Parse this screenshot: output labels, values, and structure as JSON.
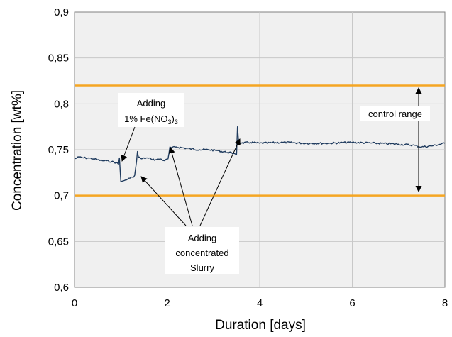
{
  "chart_data": {
    "type": "line",
    "title": "",
    "xlabel": "Duration [days]",
    "ylabel": "Concentration [wt%]",
    "xlim": [
      0,
      8
    ],
    "ylim": [
      0.6,
      0.9
    ],
    "x_ticks": [
      0,
      2,
      4,
      6,
      8
    ],
    "x_tick_labels": [
      "0",
      "2",
      "4",
      "6",
      "8"
    ],
    "y_ticks": [
      0.6,
      0.65,
      0.7,
      0.75,
      0.8,
      0.85,
      0.9
    ],
    "y_tick_labels": [
      "0,6",
      "0,65",
      "0,7",
      "0,75",
      "0,8",
      "0,85",
      "0,9"
    ],
    "grid": true,
    "background": "#f0f0f0",
    "series": [
      {
        "color": "#1f3b5e",
        "x": [
          0,
          0.1,
          0.2,
          0.3,
          0.4,
          0.5,
          0.6,
          0.7,
          0.8,
          0.9,
          0.95,
          0.97,
          1.0,
          1.05,
          1.1,
          1.15,
          1.2,
          1.25,
          1.3,
          1.34,
          1.36,
          1.38,
          1.45,
          1.55,
          1.65,
          1.75,
          1.85,
          1.95,
          2.02,
          2.04,
          2.06,
          2.1,
          2.2,
          2.35,
          2.5,
          2.7,
          2.9,
          3.1,
          3.3,
          3.45,
          3.5,
          3.52,
          3.54,
          3.56,
          3.6,
          3.8,
          4.0,
          4.5,
          5.0,
          5.5,
          6.0,
          6.5,
          7.0,
          7.3,
          7.5,
          7.7,
          8.0
        ],
        "y": [
          0.74,
          0.742,
          0.741,
          0.741,
          0.74,
          0.739,
          0.738,
          0.738,
          0.737,
          0.736,
          0.734,
          0.741,
          0.715,
          0.716,
          0.717,
          0.718,
          0.719,
          0.72,
          0.722,
          0.737,
          0.748,
          0.742,
          0.74,
          0.741,
          0.74,
          0.739,
          0.74,
          0.738,
          0.74,
          0.746,
          0.753,
          0.752,
          0.753,
          0.752,
          0.751,
          0.75,
          0.75,
          0.749,
          0.747,
          0.746,
          0.745,
          0.775,
          0.761,
          0.758,
          0.757,
          0.758,
          0.757,
          0.758,
          0.757,
          0.757,
          0.758,
          0.757,
          0.756,
          0.755,
          0.753,
          0.754,
          0.757
        ]
      }
    ],
    "reference_lines": [
      {
        "y": 0.82,
        "color": "#f5a623"
      },
      {
        "y": 0.7,
        "color": "#f5a623"
      }
    ],
    "annotations": [
      {
        "lines": [
          "Adding",
          "1% Fe(NO",
          "3",
          ")",
          "3"
        ],
        "label": "Adding 1% Fe(NO3)3"
      },
      {
        "lines": [
          "control range"
        ]
      },
      {
        "lines": [
          "Adding",
          "concentrated",
          "Slurry"
        ]
      }
    ]
  }
}
